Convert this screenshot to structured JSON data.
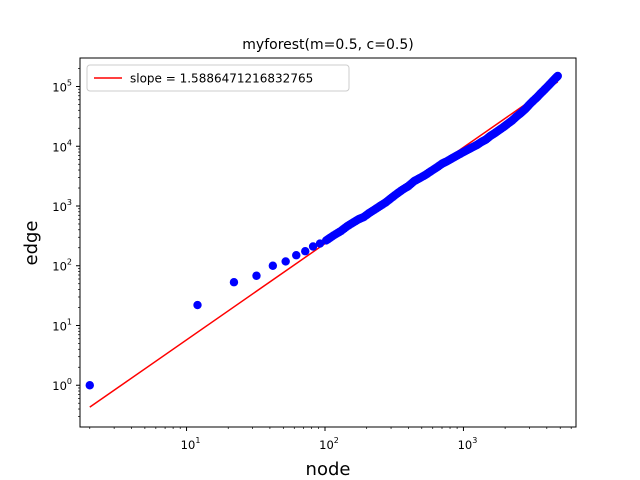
{
  "chart_data": {
    "type": "scatter",
    "title": "myforest(m=0.5, c=0.5)",
    "xlabel": "node",
    "ylabel": "edge",
    "xscale": "log",
    "yscale": "log",
    "xlim": [
      1.7,
      6500
    ],
    "ylim": [
      0.2,
      300000
    ],
    "x_ticks": [
      {
        "base": "10",
        "exp": "1",
        "value": 10
      },
      {
        "base": "10",
        "exp": "2",
        "value": 100
      },
      {
        "base": "10",
        "exp": "3",
        "value": 1000
      }
    ],
    "y_ticks": [
      {
        "base": "10",
        "exp": "0",
        "value": 1
      },
      {
        "base": "10",
        "exp": "1",
        "value": 10
      },
      {
        "base": "10",
        "exp": "2",
        "value": 100
      },
      {
        "base": "10",
        "exp": "3",
        "value": 1000
      },
      {
        "base": "10",
        "exp": "4",
        "value": 10000
      },
      {
        "base": "10",
        "exp": "5",
        "value": 100000
      }
    ],
    "legend": {
      "label": "slope = 1.5886471216832765",
      "position": "upper-left"
    },
    "points_color": "#0000ff",
    "fit_color": "#ff0000",
    "fit_line": {
      "slope": 1.5886471216832765,
      "x": [
        2,
        4800
      ],
      "y": [
        0.43,
        120000
      ]
    },
    "points": {
      "x": [
        2,
        12,
        22,
        32,
        42,
        52,
        62,
        72,
        82,
        92,
        102,
        115,
        130,
        145,
        160,
        175,
        190,
        210,
        230,
        250,
        275,
        300,
        330,
        360,
        400,
        440,
        480,
        530,
        580,
        640,
        700,
        760,
        830,
        900,
        980,
        1060,
        1150,
        1250,
        1350,
        1450,
        1560,
        1680,
        1800,
        1950,
        2100,
        2250,
        2400,
        2600,
        2800,
        3000,
        3200,
        3400,
        3600,
        3800,
        4000,
        4200,
        4400,
        4600,
        4800
      ],
      "y": [
        1,
        22,
        53,
        68,
        100,
        118,
        150,
        175,
        210,
        235,
        265,
        320,
        380,
        460,
        530,
        600,
        650,
        770,
        880,
        1000,
        1150,
        1350,
        1600,
        1850,
        2150,
        2600,
        2900,
        3300,
        3800,
        4400,
        5100,
        5600,
        6300,
        7000,
        7800,
        8600,
        9500,
        10500,
        11800,
        12900,
        14800,
        16500,
        18500,
        21000,
        24000,
        27000,
        31000,
        36000,
        42000,
        50000,
        58000,
        66000,
        76000,
        86000,
        97000,
        109000,
        122000,
        136000,
        150000
      ]
    }
  }
}
